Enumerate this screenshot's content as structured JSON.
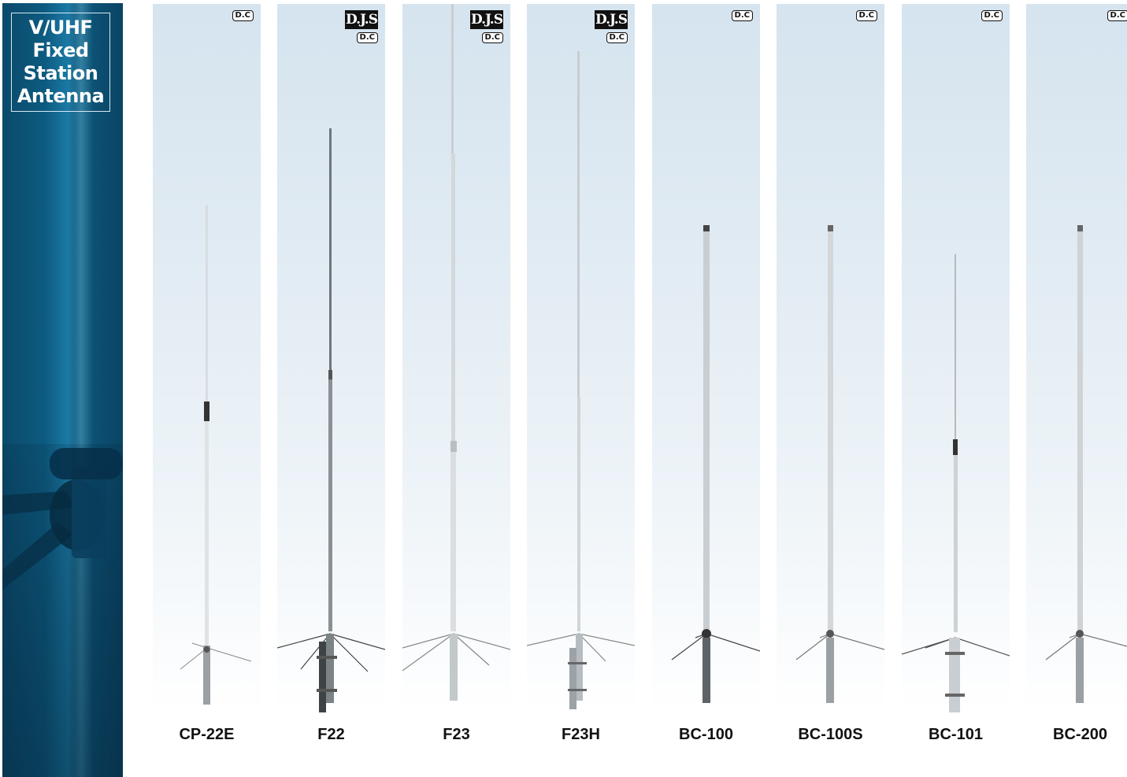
{
  "sidebar": {
    "title_lines": [
      "V/UHF",
      "Fixed",
      "Station",
      "Antenna"
    ]
  },
  "badges": {
    "dc": "D.C",
    "djs": "D.J.S"
  },
  "products": [
    {
      "model": "CP-22E",
      "badges": [
        "D.C"
      ]
    },
    {
      "model": "F22",
      "badges": [
        "D.J.S",
        "D.C"
      ]
    },
    {
      "model": "F23",
      "badges": [
        "D.J.S",
        "D.C"
      ]
    },
    {
      "model": "F23H",
      "badges": [
        "D.J.S",
        "D.C"
      ]
    },
    {
      "model": "BC-100",
      "badges": [
        "D.C"
      ]
    },
    {
      "model": "BC-100S",
      "badges": [
        "D.C"
      ]
    },
    {
      "model": "BC-101",
      "badges": [
        "D.C"
      ]
    },
    {
      "model": "BC-200",
      "badges": [
        "D.C"
      ]
    }
  ],
  "colors": {
    "sidebar_blue": "#0d5a80",
    "panel_top": "#d5e4ef",
    "label_text": "#111111"
  }
}
